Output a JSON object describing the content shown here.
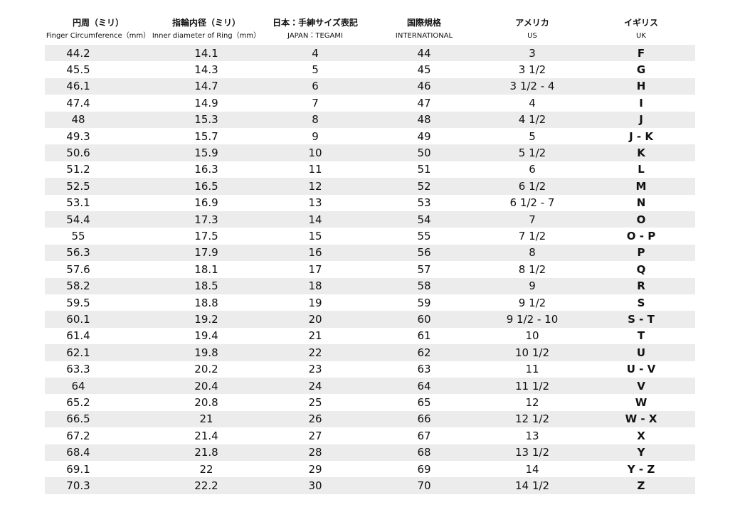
{
  "table": {
    "columns": [
      {
        "ja": "円周（ミリ）",
        "en": "Finger Circumference（mm）"
      },
      {
        "ja": "指輪内径（ミリ）",
        "en": "Inner diameter of Ring（mm）"
      },
      {
        "ja": "日本：手紳サイズ表記",
        "en": "JAPAN：TEGAMI"
      },
      {
        "ja": "国際規格",
        "en": "INTERNATIONAL"
      },
      {
        "ja": "アメリカ",
        "en": "US"
      },
      {
        "ja": "イギリス",
        "en": "UK"
      }
    ],
    "rows": [
      [
        "44.2",
        "14.1",
        "4",
        "44",
        "3",
        "F"
      ],
      [
        "45.5",
        "14.3",
        "5",
        "45",
        "3 1/2",
        "G"
      ],
      [
        "46.1",
        "14.7",
        "6",
        "46",
        "3 1/2 - 4",
        "H"
      ],
      [
        "47.4",
        "14.9",
        "7",
        "47",
        "4",
        "I"
      ],
      [
        "48",
        "15.3",
        "8",
        "48",
        "4 1/2",
        "J"
      ],
      [
        "49.3",
        "15.7",
        "9",
        "49",
        "5",
        "J - K"
      ],
      [
        "50.6",
        "15.9",
        "10",
        "50",
        "5 1/2",
        "K"
      ],
      [
        "51.2",
        "16.3",
        "11",
        "51",
        "6",
        "L"
      ],
      [
        "52.5",
        "16.5",
        "12",
        "52",
        "6 1/2",
        "M"
      ],
      [
        "53.1",
        "16.9",
        "13",
        "53",
        "6 1/2 - 7",
        "N"
      ],
      [
        "54.4",
        "17.3",
        "14",
        "54",
        "7",
        "O"
      ],
      [
        "55",
        "17.5",
        "15",
        "55",
        "7 1/2",
        "O - P"
      ],
      [
        "56.3",
        "17.9",
        "16",
        "56",
        "8",
        "P"
      ],
      [
        "57.6",
        "18.1",
        "17",
        "57",
        "8 1/2",
        "Q"
      ],
      [
        "58.2",
        "18.5",
        "18",
        "58",
        "9",
        "R"
      ],
      [
        "59.5",
        "18.8",
        "19",
        "59",
        "9 1/2",
        "S"
      ],
      [
        "60.1",
        "19.2",
        "20",
        "60",
        "9 1/2 - 10",
        "S - T"
      ],
      [
        "61.4",
        "19.4",
        "21",
        "61",
        "10",
        "T"
      ],
      [
        "62.1",
        "19.8",
        "22",
        "62",
        "10 1/2",
        "U"
      ],
      [
        "63.3",
        "20.2",
        "23",
        "63",
        "11",
        "U - V"
      ],
      [
        "64",
        "20.4",
        "24",
        "64",
        "11 1/2",
        "V"
      ],
      [
        "65.2",
        "20.8",
        "25",
        "65",
        "12",
        "W"
      ],
      [
        "66.5",
        "21",
        "26",
        "66",
        "12 1/2",
        "W - X"
      ],
      [
        "67.2",
        "21.4",
        "27",
        "67",
        "13",
        "X"
      ],
      [
        "68.4",
        "21.8",
        "28",
        "68",
        "13 1/2",
        "Y"
      ],
      [
        "69.1",
        "22",
        "29",
        "69",
        "14",
        "Y - Z"
      ],
      [
        "70.3",
        "22.2",
        "30",
        "70",
        "14 1/2",
        "Z"
      ]
    ]
  }
}
